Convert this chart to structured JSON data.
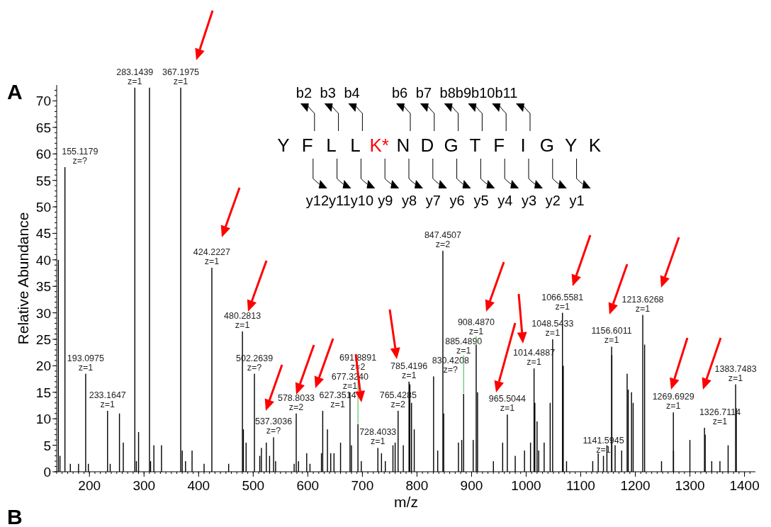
{
  "chart_data": {
    "type": "bar",
    "xlabel": "m/z",
    "ylabel": "Relative Abundance",
    "xlim": [
      140,
      1420
    ],
    "xticks": [
      200,
      300,
      400,
      500,
      600,
      700,
      800,
      900,
      1000,
      1100,
      1200,
      1300,
      1400
    ],
    "ylim": [
      0,
      73
    ],
    "yticks": [
      0,
      5,
      10,
      15,
      20,
      25,
      30,
      35,
      40,
      45,
      50,
      55,
      60,
      65,
      70
    ],
    "annotations": [
      "A",
      "B",
      "Y F L L K* N D G T F I G Y K",
      "b2 b3 b4 b6 b7 b8b9b10b11",
      "y12y11y10 y9 y8 y7 y6 y5 y4 y3 y2 y1",
      {
        "text": "155.1179 z=?",
        "x": 155.1179,
        "y": 57.5
      },
      {
        "text": "193.0975 z=1",
        "x": 193.0975,
        "y": 18.5
      },
      {
        "text": "233.1647 z=1",
        "x": 233.1647,
        "y": 11.5
      },
      {
        "text": "283.1439 z=1",
        "x": 283.1439,
        "y": 72.5
      },
      {
        "text": "367.1975 z=1",
        "x": 367.1975,
        "y": 72.5
      },
      {
        "text": "424.2227 z=1",
        "x": 424.2227,
        "y": 38.5
      },
      {
        "text": "480.2813 z=1",
        "x": 480.2813,
        "y": 26.5
      },
      {
        "text": "502.2639 z=?",
        "x": 502.2639,
        "y": 18.5
      },
      {
        "text": "537.3036 z=?",
        "x": 537.3036,
        "y": 6.5
      },
      {
        "text": "578.8033 z=2",
        "x": 578.8033,
        "y": 11
      },
      {
        "text": "627.3514 z=1",
        "x": 627.3514,
        "y": 11.5
      },
      {
        "text": "677.3240 z=1",
        "x": 677.324,
        "y": 15
      },
      {
        "text": "691.8891 z=2",
        "x": 691.8891,
        "y": 9
      },
      {
        "text": "728.4033 z=1",
        "x": 728.4033,
        "y": 4.5
      },
      {
        "text": "765.4285 z=2",
        "x": 765.4285,
        "y": 11.5
      },
      {
        "text": "785.4196 z=1",
        "x": 785.4196,
        "y": 17
      },
      {
        "text": "830.4208 z=?",
        "x": 830.4208,
        "y": 18
      },
      {
        "text": "847.4507 z=2",
        "x": 847.4507,
        "y": 41.7
      },
      {
        "text": "885.4890 z=1",
        "x": 885.489,
        "y": 14.7
      },
      {
        "text": "908.4870 z=1",
        "x": 908.487,
        "y": 24
      },
      {
        "text": "965.5044 z=1",
        "x": 965.5044,
        "y": 10.8
      },
      {
        "text": "1014.4887 z=1",
        "x": 1014.4887,
        "y": 19.5
      },
      {
        "text": "1048.5433 z=1",
        "x": 1048.5433,
        "y": 25
      },
      {
        "text": "1066.5581 z=1",
        "x": 1066.5581,
        "y": 30
      },
      {
        "text": "1141.5945 z=1",
        "x": 1141.5945,
        "y": 3
      },
      {
        "text": "1156.6011 z=1",
        "x": 1156.6011,
        "y": 23.6
      },
      {
        "text": "1213.6268 z=1",
        "x": 1213.6268,
        "y": 29.6
      },
      {
        "text": "1269.6929 z=1",
        "x": 1269.6929,
        "y": 11.2
      },
      {
        "text": "1326.7114 z=1",
        "x": 1326.7114,
        "y": 8.3
      },
      {
        "text": "1383.7483 z=1",
        "x": 1383.7483,
        "y": 16.5
      }
    ],
    "x": [
      143,
      146,
      155.1179,
      165,
      180,
      193.0975,
      198,
      233.1647,
      238,
      255,
      262,
      283.1439,
      286,
      290,
      310,
      312,
      318,
      332,
      367.1975,
      370,
      376,
      388,
      410,
      424.2227,
      455,
      480.2813,
      482,
      487,
      502.2639,
      512,
      515,
      524,
      530,
      537.3036,
      541,
      575,
      578.8033,
      583,
      598,
      604,
      625,
      627.3514,
      636,
      642,
      648,
      660,
      677.324,
      680,
      691.8891,
      698,
      728.4033,
      735,
      742,
      756,
      760,
      765.4285,
      775,
      785.4196,
      787,
      790,
      795,
      830.4208,
      838,
      847.4507,
      849,
      876,
      882,
      885.489,
      903,
      908.487,
      911,
      940,
      957,
      965.5044,
      980,
      997,
      1008,
      1014.4887,
      1016,
      1020,
      1023,
      1033,
      1044,
      1048.5433,
      1066.5581,
      1068,
      1074,
      1122,
      1132,
      1141.5945,
      1148,
      1156.6011,
      1157,
      1163,
      1175,
      1185,
      1187,
      1193,
      1196,
      1213.6268,
      1217,
      1248,
      1269.6929,
      1270,
      1300,
      1326.7114,
      1328,
      1340,
      1355,
      1370,
      1383.7483,
      1385
    ],
    "values": [
      40,
      3,
      57.5,
      1.5,
      1.5,
      18.5,
      1.5,
      11.5,
      1.5,
      11,
      5.5,
      72.5,
      2,
      7.5,
      72.5,
      2,
      5,
      5,
      72.5,
      4,
      2,
      4,
      1.5,
      38.5,
      1.5,
      26.5,
      8,
      5.5,
      18.5,
      3,
      4.5,
      5.5,
      3,
      6.5,
      2,
      1.5,
      11,
      2,
      3.5,
      1.5,
      3.5,
      11.5,
      8,
      3.5,
      3.5,
      5.5,
      15,
      5,
      9,
      2,
      4.5,
      3.5,
      2,
      5,
      5.5,
      11.5,
      5,
      17,
      16.5,
      13,
      8,
      18,
      4,
      41.7,
      11,
      5.5,
      6,
      14.7,
      6,
      24,
      15,
      2,
      5.5,
      10.8,
      3,
      4,
      5.5,
      19.5,
      13,
      9.5,
      4,
      5.5,
      13,
      25,
      30,
      20,
      2,
      2,
      3.5,
      3,
      5,
      23.6,
      22,
      5,
      4,
      18.5,
      15.5,
      15,
      13,
      29.6,
      24,
      2,
      11.2,
      4,
      6,
      8.3,
      7,
      2,
      2,
      5,
      16.5,
      12
    ],
    "color": "#000000"
  }
}
